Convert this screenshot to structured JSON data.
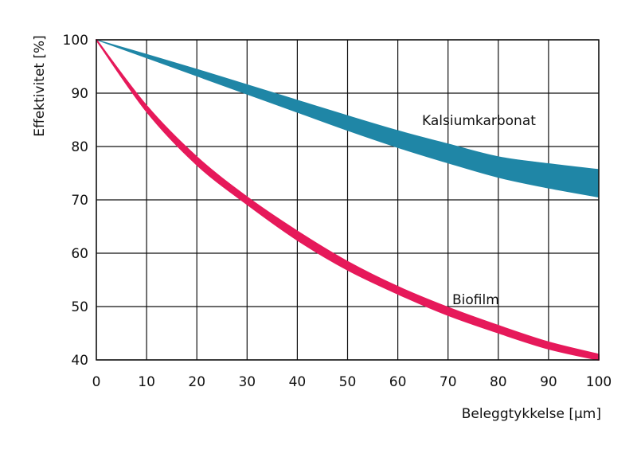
{
  "chart_data": {
    "type": "area",
    "xlabel": "Beleggtykkelse [µm]",
    "ylabel": "Effektivitet [%]",
    "xlim": [
      0,
      100
    ],
    "ylim": [
      40,
      100
    ],
    "x_ticks": [
      0,
      10,
      20,
      30,
      40,
      50,
      60,
      70,
      80,
      90,
      100
    ],
    "y_ticks": [
      40,
      50,
      60,
      70,
      80,
      90,
      100
    ],
    "grid": true,
    "series": [
      {
        "name": "Kalsiumkarbonat",
        "color": "#1f86a6",
        "x": [
          0,
          10,
          20,
          30,
          40,
          50,
          60,
          70,
          80,
          90,
          100
        ],
        "upper": [
          100,
          97.0,
          93.8,
          90.6,
          87.5,
          84.5,
          81.6,
          78.8,
          76.2,
          73.6,
          71.1
        ],
        "lower": [
          100,
          96.3,
          92.6,
          89.0,
          85.6,
          82.4,
          79.4,
          76.5,
          75.0,
          73.2,
          70.5
        ],
        "upper_display": [
          100,
          97.3,
          94.5,
          91.6,
          88.7,
          85.8,
          83.0,
          80.5,
          78.1,
          76.8,
          75.7
        ],
        "lower_display": [
          100,
          96.6,
          93.2,
          89.8,
          86.4,
          83.0,
          79.8,
          76.9,
          74.2,
          72.2,
          70.5
        ]
      },
      {
        "name": "Biofilm",
        "color": "#e6195a",
        "x": [
          0,
          10,
          20,
          30,
          40,
          50,
          60,
          70,
          80,
          90,
          100
        ],
        "upper": [
          100,
          87.6,
          78.0,
          70.5,
          64.1,
          58.4,
          53.7,
          49.8,
          46.4,
          43.3,
          41.0
        ],
        "lower": [
          100,
          86.6,
          76.6,
          69.2,
          62.5,
          56.9,
          52.4,
          48.4,
          45.1,
          42.1,
          40.0
        ]
      }
    ]
  }
}
